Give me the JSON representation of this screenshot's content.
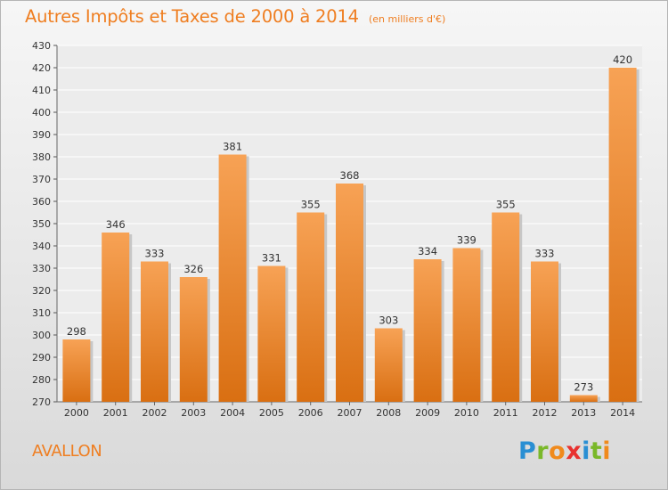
{
  "title": "Autres Impôts et Taxes de 2000 à 2014",
  "subtitle": "(en milliers d'€)",
  "location": "AVALLON",
  "brand": {
    "letters": [
      "P",
      "r",
      "o",
      "x",
      "i",
      "t",
      "i"
    ],
    "colors": [
      "#2a8fd3",
      "#7ab829",
      "#f08a1c",
      "#e8312f",
      "#2a8fd3",
      "#7ab829",
      "#f08a1c"
    ]
  },
  "chart_data": {
    "type": "bar",
    "title": "Autres Impôts et Taxes de 2000 à 2014",
    "xlabel": "",
    "ylabel": "",
    "categories": [
      "2000",
      "2001",
      "2002",
      "2003",
      "2004",
      "2005",
      "2006",
      "2007",
      "2008",
      "2009",
      "2010",
      "2011",
      "2012",
      "2013",
      "2014"
    ],
    "values": [
      298,
      346,
      333,
      326,
      381,
      331,
      355,
      368,
      303,
      334,
      339,
      355,
      333,
      273,
      420
    ],
    "ylim": [
      270,
      430
    ],
    "yticks": [
      270,
      280,
      290,
      300,
      310,
      320,
      330,
      340,
      350,
      360,
      370,
      380,
      390,
      400,
      410,
      420,
      430
    ],
    "grid": "horizontal",
    "bar_color_top": "#f7a255",
    "bar_color_bottom": "#d96f12"
  }
}
